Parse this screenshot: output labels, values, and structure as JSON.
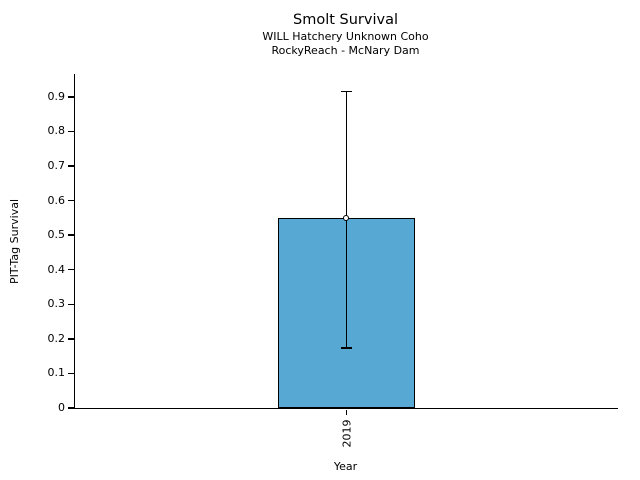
{
  "chart_data": {
    "type": "bar",
    "title": "Smolt Survival",
    "subtitles": [
      "WILL Hatchery Unknown Coho",
      "RockyReach - McNary Dam"
    ],
    "categories": [
      "2019"
    ],
    "values": [
      0.549
    ],
    "error_low": [
      0.174
    ],
    "error_high": [
      0.915
    ],
    "xlabel": "Year",
    "ylabel": "PIT-Tag Survival",
    "ylim": [
      0,
      0.966
    ],
    "yticks": [
      0,
      0.1,
      0.2,
      0.3,
      0.4,
      0.5,
      0.6,
      0.7,
      0.8,
      0.9
    ],
    "ytick_labels": [
      "0",
      "0.1",
      "0.2",
      "0.3",
      "0.4",
      "0.5",
      "0.6",
      "0.7",
      "0.8",
      "0.9"
    ],
    "bar_color": "#57a9d4",
    "bar_edge_color": "#000000",
    "marker": "open-circle",
    "grid": false,
    "legend_position": "none"
  }
}
